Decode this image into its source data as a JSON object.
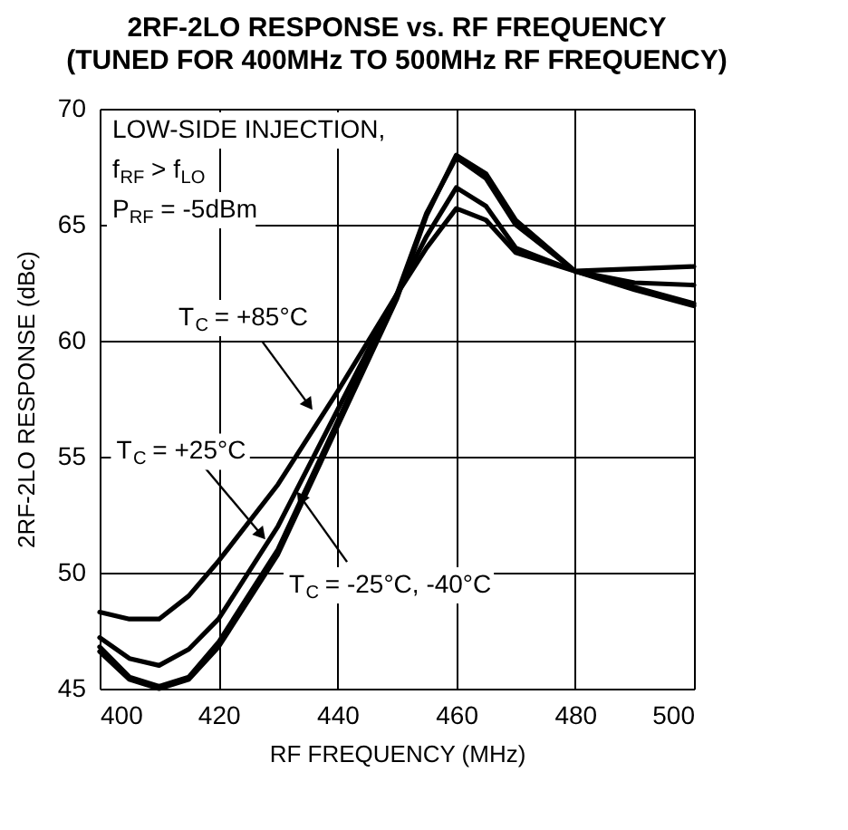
{
  "chart_data": {
    "type": "line",
    "title": "2RF-2LO RESPONSE vs. RF FREQUENCY",
    "subtitle": "(TUNED FOR 400MHz TO 500MHz RF FREQUENCY)",
    "xlabel": "RF FREQUENCY (MHz)",
    "ylabel": "2RF-2LO RESPONSE (dBc)",
    "x": [
      400,
      405,
      410,
      415,
      420,
      430,
      440,
      450,
      455,
      460,
      465,
      470,
      480,
      490,
      500
    ],
    "series": [
      {
        "color": "#000000",
        "values": [
          48.3,
          48.0,
          48.0,
          49.0,
          50.5,
          53.8,
          57.8,
          62.0,
          64.0,
          65.7,
          65.2,
          63.8,
          63.0,
          63.1,
          63.2
        ]
      },
      {
        "color": "#000000",
        "values": [
          47.2,
          46.3,
          46.0,
          46.7,
          48.0,
          52.0,
          57.0,
          62.0,
          64.5,
          66.6,
          65.8,
          64.0,
          63.0,
          62.5,
          62.4
        ]
      },
      {
        "color": "#000000",
        "values": [
          46.8,
          45.5,
          45.1,
          45.5,
          47.0,
          51.0,
          56.5,
          62.0,
          65.5,
          67.9,
          67.0,
          65.0,
          63.0,
          62.3,
          61.6
        ]
      },
      {
        "color": "#000000",
        "values": [
          46.6,
          45.4,
          45.0,
          45.4,
          46.8,
          50.8,
          56.3,
          61.8,
          65.4,
          68.0,
          67.2,
          65.2,
          63.0,
          62.2,
          61.5
        ]
      }
    ],
    "xlim": [
      400,
      500
    ],
    "ylim": [
      45,
      70
    ],
    "xticks": [
      400,
      420,
      440,
      460,
      480,
      500
    ],
    "yticks": [
      45,
      50,
      55,
      60,
      65,
      70
    ],
    "grid": true,
    "legend": false,
    "marker": "none",
    "line_style": "solid",
    "annotations": [
      "LOW-SIDE INJECTION,",
      "f$_{RF}$ > f$_{LO}$",
      "P$_{RF}$ = -5dBm",
      {
        "text": "T$_{C}$ = +85°C",
        "x": 435,
        "y": 57.3
      },
      {
        "text": "T$_{C}$ = +25°C",
        "x": 427,
        "y": 51.7
      },
      {
        "text": "T$_{C}$ = -25°C, -40°C",
        "x": 434,
        "y": 53.2
      }
    ]
  }
}
